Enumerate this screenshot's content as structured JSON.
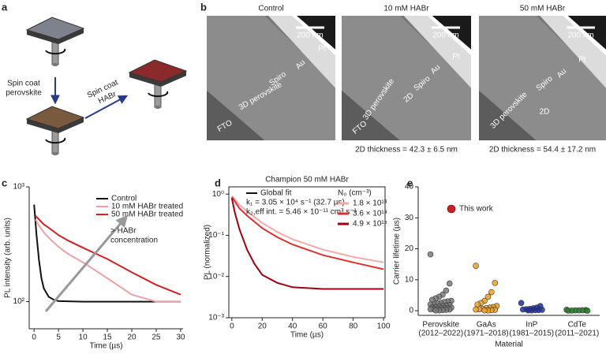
{
  "panel_labels": [
    "a",
    "b",
    "c",
    "d",
    "e"
  ],
  "panel_a": {
    "step_1": [
      "Spin coat",
      "perovskite"
    ],
    "step_2": [
      "Spin coat",
      "HABr"
    ]
  },
  "panel_b": {
    "titles": [
      "Control",
      "10 mM HABr",
      "50 mM HABr"
    ],
    "scale_bars": [
      "200 nm",
      "200 nm",
      "200 nm"
    ],
    "labels": [
      [
        "Pt",
        "Au",
        "Spiro",
        "3D perovskite",
        "FTO"
      ],
      [
        "Pt",
        "Au",
        "Spiro",
        "2D",
        "3D perovskite",
        "FTO"
      ],
      [
        "Pt",
        "Au",
        "Spiro",
        "2D",
        "3D perovskite"
      ]
    ],
    "captions": [
      "2D thickness = 42.3 ± 6.5 nm",
      "2D thickness = 54.4 ± 17.2 nm"
    ]
  },
  "chart_data": [
    {
      "type": "line",
      "log_y": true,
      "xlabel": "Time (µs)",
      "ylabel": "PL intensity (arb. units)",
      "xlim": [
        -1,
        30.5
      ],
      "xticks": [
        0,
        5,
        10,
        15,
        20,
        25,
        30
      ],
      "ylim": [
        58,
        1000
      ],
      "yticks": [
        {
          "value": 100,
          "label": "10²"
        },
        {
          "value": 1000,
          "label": "10³"
        }
      ],
      "annotation": [
        "> HABr",
        "concentration"
      ],
      "series": [
        {
          "name": "Control",
          "color": "#111111",
          "x": [
            0,
            0.5,
            1,
            1.5,
            2,
            3,
            4,
            5,
            10,
            15,
            20,
            25,
            30
          ],
          "values": [
            700,
            380,
            230,
            160,
            130,
            110,
            104,
            101,
            100,
            100,
            100,
            100,
            100
          ]
        },
        {
          "name": "10 mM HABr treated",
          "color": "#f0a0a0",
          "x": [
            0.3,
            1,
            2,
            3,
            5,
            7,
            10,
            15,
            20,
            25,
            30
          ],
          "values": [
            520,
            460,
            400,
            360,
            300,
            260,
            220,
            160,
            115,
            100,
            100
          ]
        },
        {
          "name": "50 mM HABr treated",
          "color": "#d42020",
          "x": [
            0.3,
            1,
            2,
            3,
            5,
            7,
            10,
            15,
            20,
            25,
            30
          ],
          "values": [
            560,
            520,
            470,
            440,
            380,
            340,
            295,
            235,
            180,
            140,
            115
          ]
        }
      ]
    },
    {
      "type": "line",
      "log_y": true,
      "title": "Champion 50 mM HABr",
      "xlabel": "Time (µs)",
      "ylabel": "PL (normalized)",
      "xlim": [
        -2,
        101
      ],
      "xticks": [
        0,
        20,
        40,
        60,
        80,
        100
      ],
      "ylim": [
        0.001,
        1.5
      ],
      "yticks": [
        {
          "value": 0.001,
          "label": "10⁻³"
        },
        {
          "value": 0.01,
          "label": "10⁻²"
        },
        {
          "value": 0.1,
          "label": "10⁻¹"
        },
        {
          "value": 1,
          "label": "10⁰"
        }
      ],
      "fit_label": "Global fit",
      "fit_params": [
        "k₁ = 3.05 × 10⁴ s⁻¹ (32.7 µs)",
        "k₂,eff int. = 5.46 × 10⁻¹¹ cm³ s⁻¹"
      ],
      "legend_title": "N₀ (cm⁻³)",
      "series": [
        {
          "name": "1.8 × 10¹³",
          "color": "#f7a8a8",
          "x": [
            0,
            5,
            10,
            20,
            30,
            40,
            60,
            80,
            100
          ],
          "values": [
            0.9,
            0.55,
            0.38,
            0.2,
            0.12,
            0.08,
            0.045,
            0.03,
            0.022
          ]
        },
        {
          "name": "3.6 × 10¹⁴",
          "color": "#e03030",
          "x": [
            0,
            5,
            10,
            20,
            30,
            40,
            60,
            80,
            100
          ],
          "values": [
            0.85,
            0.45,
            0.3,
            0.15,
            0.09,
            0.06,
            0.033,
            0.022,
            0.015
          ]
        },
        {
          "name": "4.9 × 10¹⁵",
          "color": "#a00010",
          "x": [
            0,
            2,
            5,
            10,
            15,
            20,
            30,
            40,
            60,
            80,
            100
          ],
          "values": [
            0.8,
            0.35,
            0.14,
            0.045,
            0.02,
            0.011,
            0.007,
            0.0055,
            0.005,
            0.005,
            0.005
          ]
        }
      ]
    },
    {
      "type": "strip",
      "xlabel": "Material",
      "ylabel": "Carrier lifetime (µs)",
      "ylim": [
        -1.5,
        40
      ],
      "yticks": [
        0,
        10,
        20,
        30,
        40
      ],
      "categories": [
        "Perovskite",
        "GaAs",
        "InP",
        "CdTe"
      ],
      "category_notes": [
        "(2012–2022)",
        "(1971–2018)",
        "(1981–2015)",
        "(2011–2021)"
      ],
      "legend_entry": {
        "label": "This work",
        "color": "#cc2020"
      },
      "series": [
        {
          "color": "#7a7a7a",
          "values": [
            18.2,
            8.8,
            6.5,
            5.2,
            4.5,
            4.0,
            3.5,
            3.2,
            3.0,
            2.8,
            2.5,
            2.3,
            2.0,
            2.0,
            1.8,
            1.6,
            1.5,
            1.3,
            1.2,
            1.0,
            1.0,
            0.9,
            0.8,
            0.7,
            0.6,
            0.5,
            0.5,
            0.4,
            0.3,
            0.2,
            0.1,
            0.1
          ]
        },
        {
          "color": "#f0a020",
          "values": [
            14.5,
            9.0,
            6.0,
            4.5,
            3.2,
            2.5,
            2.0,
            1.5,
            1.2,
            1.0,
            0.8,
            0.6,
            0.5,
            0.4,
            0.3,
            0.2,
            0.1,
            0.1
          ]
        },
        {
          "color": "#1f2fa0",
          "values": [
            2.5,
            1.5,
            1.0,
            0.8,
            0.6,
            0.5,
            0.4,
            0.3,
            0.2,
            0.2,
            0.1,
            0.1
          ]
        },
        {
          "color": "#2a7a2a",
          "values": [
            0.3,
            0.2,
            0.15,
            0.1,
            0.1,
            0.05,
            0.05,
            0.02
          ]
        }
      ]
    }
  ]
}
